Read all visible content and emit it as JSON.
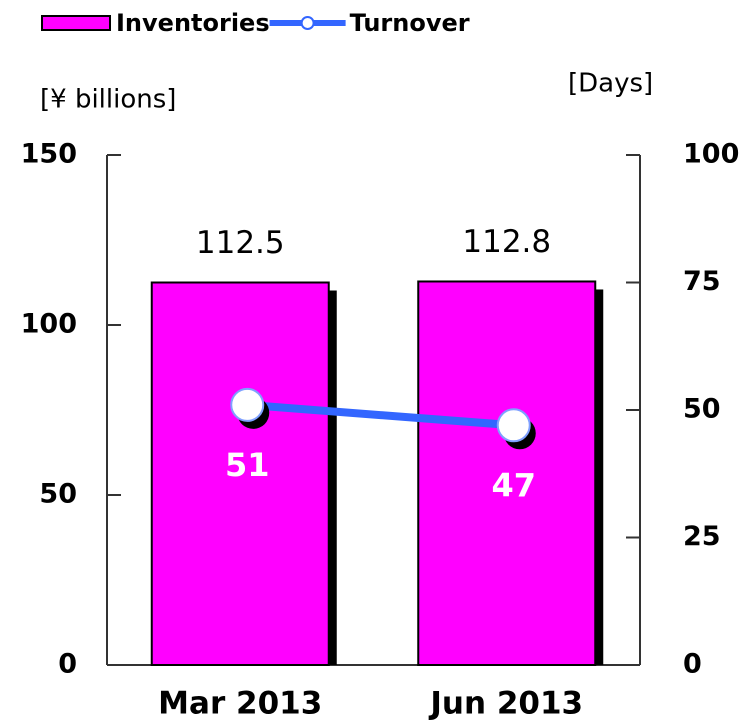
{
  "chart_data": {
    "type": "bar",
    "categories": [
      "Mar 2013",
      "Jun 2013"
    ],
    "series": [
      {
        "name": "Inventories",
        "type": "bar",
        "color": "#ff00ff",
        "values": [
          112.5,
          112.8
        ]
      },
      {
        "name": "Turnover",
        "type": "line",
        "axis": "y2",
        "color": "#3366ff",
        "values": [
          51,
          47
        ]
      }
    ],
    "y_label": "[¥ billions]",
    "y2_label": "[Days]",
    "ylim": [
      0,
      150
    ],
    "yticks": [
      0,
      50,
      100,
      150
    ],
    "y2lim": [
      0,
      100
    ],
    "y2ticks": [
      0,
      25,
      50,
      75,
      100
    ],
    "legend": "top",
    "grid": false
  }
}
